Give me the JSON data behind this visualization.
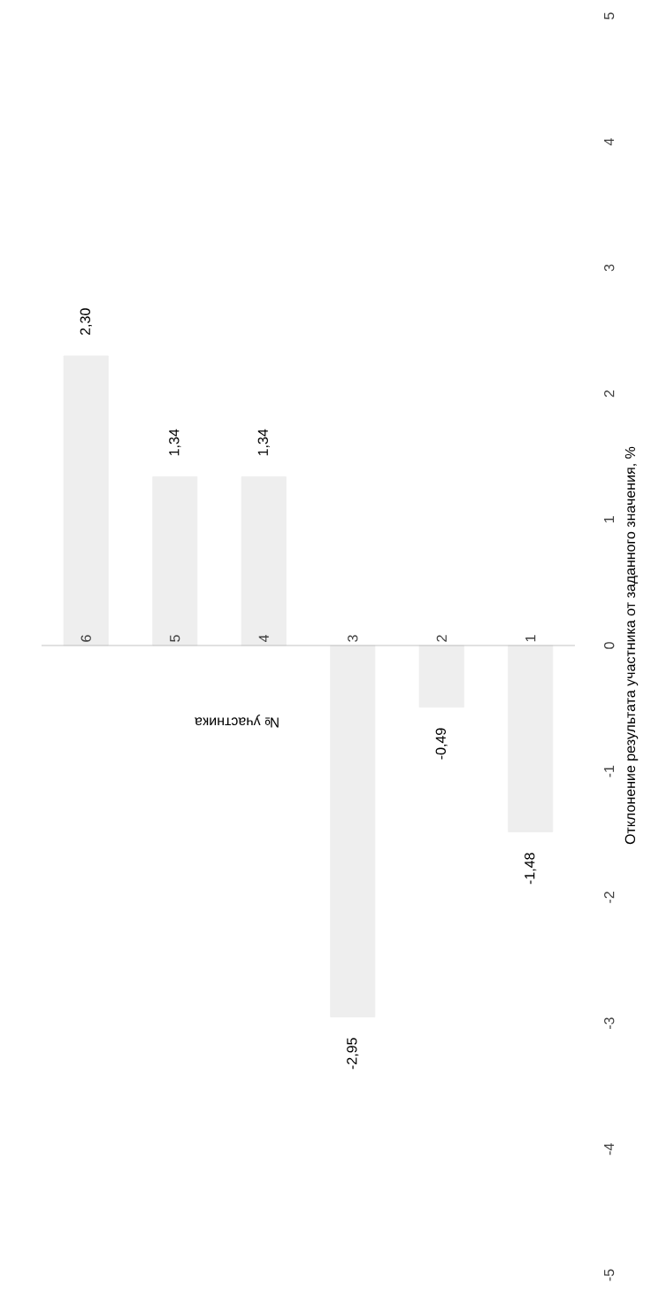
{
  "chart_data": {
    "type": "bar",
    "categories": [
      "6",
      "5",
      "4",
      "3",
      "2",
      "1"
    ],
    "values": [
      2.3,
      1.34,
      1.34,
      -2.95,
      -0.49,
      -1.48
    ],
    "value_labels": [
      "2,30",
      "1,34",
      "1,34",
      "-2,95",
      "-0,49",
      "-1,48"
    ],
    "color": "#eeeeee",
    "ylabel": "Отклонение результата участника от заданного значения, %",
    "xlabel": "№ участника",
    "ylim": [
      -5,
      5
    ],
    "yticks": [
      -5,
      -4,
      -3,
      -2,
      -1,
      0,
      1,
      2,
      3,
      4,
      5
    ]
  }
}
